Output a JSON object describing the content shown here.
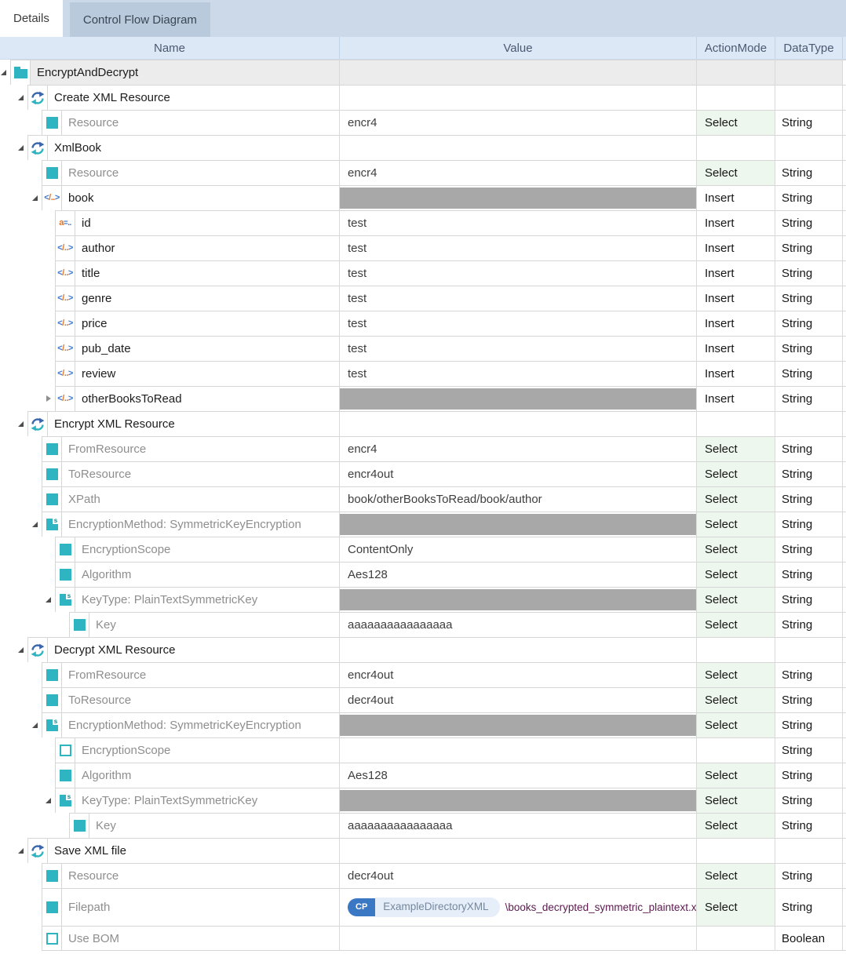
{
  "tabs": {
    "details": "Details",
    "control_flow": "Control Flow Diagram"
  },
  "header": {
    "name": "Name",
    "value": "Value",
    "action_mode": "ActionMode",
    "data_type": "DataType"
  },
  "colors": {
    "accent_teal": "#2fb4c1",
    "accent_blue": "#3a66ae",
    "select_cell_bg": "#edf7ee",
    "disabled_value_bar": "#a8a8a8",
    "root_row_bg": "#ececec",
    "header_bg": "#dce8f5",
    "tab_bar_bg": "#ccd9e8",
    "inactive_tab_bg": "#b9cadd",
    "cp_badge_bg": "#3a78c4",
    "path_text": "#5d1a4f"
  },
  "filepath_badge": {
    "prefix": "CP",
    "variable": "ExampleDirectoryXML",
    "path": "\\books_decrypted_symmetric_plaintext.xml"
  },
  "rows": [
    {
      "name": "EncryptAndDecrypt",
      "level": 0,
      "icon": "folder",
      "expander": "open",
      "kind": "node",
      "root": true
    },
    {
      "name": "Create XML Resource",
      "level": 1,
      "icon": "refresh",
      "expander": "open",
      "kind": "node"
    },
    {
      "name": "Resource",
      "level": 2,
      "icon": "square",
      "kind": "param",
      "value": "encr4",
      "action": "Select",
      "datatype": "String"
    },
    {
      "name": "XmlBook",
      "level": 1,
      "icon": "refresh",
      "expander": "open",
      "kind": "node"
    },
    {
      "name": "Resource",
      "level": 2,
      "icon": "square",
      "kind": "param",
      "value": "encr4",
      "action": "Select",
      "datatype": "String"
    },
    {
      "name": "book",
      "level": 2,
      "icon": "xml",
      "expander": "open",
      "kind": "node",
      "grayBar": true,
      "action": "Insert",
      "datatype": "String"
    },
    {
      "name": "id",
      "level": 3,
      "icon": "attr",
      "kind": "node",
      "value": "test",
      "action": "Insert",
      "datatype": "String"
    },
    {
      "name": "author",
      "level": 3,
      "icon": "xml",
      "kind": "node",
      "value": "test",
      "action": "Insert",
      "datatype": "String"
    },
    {
      "name": "title",
      "level": 3,
      "icon": "xml",
      "kind": "node",
      "value": "test",
      "action": "Insert",
      "datatype": "String"
    },
    {
      "name": "genre",
      "level": 3,
      "icon": "xml",
      "kind": "node",
      "value": "test",
      "action": "Insert",
      "datatype": "String"
    },
    {
      "name": "price",
      "level": 3,
      "icon": "xml",
      "kind": "node",
      "value": "test",
      "action": "Insert",
      "datatype": "String"
    },
    {
      "name": "pub_date",
      "level": 3,
      "icon": "xml",
      "kind": "node",
      "value": "test",
      "action": "Insert",
      "datatype": "String"
    },
    {
      "name": "review",
      "level": 3,
      "icon": "xml",
      "kind": "node",
      "value": "test",
      "action": "Insert",
      "datatype": "String"
    },
    {
      "name": "otherBooksToRead",
      "level": 3,
      "icon": "xml",
      "expander": "closed",
      "kind": "node",
      "grayBar": true,
      "action": "Insert",
      "datatype": "String"
    },
    {
      "name": "Encrypt XML Resource",
      "level": 1,
      "icon": "refresh",
      "expander": "open",
      "kind": "node"
    },
    {
      "name": "FromResource",
      "level": 2,
      "icon": "square",
      "kind": "param",
      "value": "encr4",
      "action": "Select",
      "datatype": "String"
    },
    {
      "name": "ToResource",
      "level": 2,
      "icon": "square",
      "kind": "param",
      "value": "encr4out",
      "action": "Select",
      "datatype": "String"
    },
    {
      "name": "XPath",
      "level": 2,
      "icon": "square",
      "kind": "param",
      "value": "book/otherBooksToRead/book/author",
      "action": "Select",
      "datatype": "String"
    },
    {
      "name": "EncryptionMethod: SymmetricKeyEncryption",
      "level": 2,
      "icon": "struct",
      "expander": "open",
      "kind": "param",
      "grayBar": true,
      "action": "Select",
      "datatype": "String"
    },
    {
      "name": "EncryptionScope",
      "level": 3,
      "icon": "square",
      "kind": "param",
      "value": "ContentOnly",
      "action": "Select",
      "datatype": "String"
    },
    {
      "name": "Algorithm",
      "level": 3,
      "icon": "square",
      "kind": "param",
      "value": "Aes128",
      "action": "Select",
      "datatype": "String"
    },
    {
      "name": "KeyType: PlainTextSymmetricKey",
      "level": 3,
      "icon": "struct",
      "expander": "open",
      "kind": "param",
      "grayBar": true,
      "action": "Select",
      "datatype": "String"
    },
    {
      "name": "Key",
      "level": 4,
      "icon": "square",
      "kind": "param",
      "value": "aaaaaaaaaaaaaaaa",
      "action": "Select",
      "datatype": "String"
    },
    {
      "name": "Decrypt XML Resource",
      "level": 1,
      "icon": "refresh",
      "expander": "open",
      "kind": "node"
    },
    {
      "name": "FromResource",
      "level": 2,
      "icon": "square",
      "kind": "param",
      "value": "encr4out",
      "action": "Select",
      "datatype": "String"
    },
    {
      "name": "ToResource",
      "level": 2,
      "icon": "square",
      "kind": "param",
      "value": "decr4out",
      "action": "Select",
      "datatype": "String"
    },
    {
      "name": "EncryptionMethod: SymmetricKeyEncryption",
      "level": 2,
      "icon": "struct",
      "expander": "open",
      "kind": "param",
      "grayBar": true,
      "action": "Select",
      "datatype": "String"
    },
    {
      "name": "EncryptionScope",
      "level": 3,
      "icon": "square-empty",
      "kind": "param",
      "datatype": "String"
    },
    {
      "name": "Algorithm",
      "level": 3,
      "icon": "square",
      "kind": "param",
      "value": "Aes128",
      "action": "Select",
      "datatype": "String"
    },
    {
      "name": "KeyType: PlainTextSymmetricKey",
      "level": 3,
      "icon": "struct",
      "expander": "open",
      "kind": "param",
      "grayBar": true,
      "action": "Select",
      "datatype": "String"
    },
    {
      "name": "Key",
      "level": 4,
      "icon": "square",
      "kind": "param",
      "value": "aaaaaaaaaaaaaaaa",
      "action": "Select",
      "datatype": "String"
    },
    {
      "name": "Save XML file",
      "level": 1,
      "icon": "refresh",
      "expander": "open",
      "kind": "node"
    },
    {
      "name": "Resource",
      "level": 2,
      "icon": "square",
      "kind": "param",
      "value": "decr4out",
      "action": "Select",
      "datatype": "String"
    },
    {
      "name": "Filepath",
      "level": 2,
      "icon": "square",
      "kind": "param",
      "badge": true,
      "action": "Select",
      "datatype": "String",
      "tall": true
    },
    {
      "name": "Use BOM",
      "level": 2,
      "icon": "square-empty",
      "kind": "param",
      "datatype": "Boolean"
    }
  ]
}
